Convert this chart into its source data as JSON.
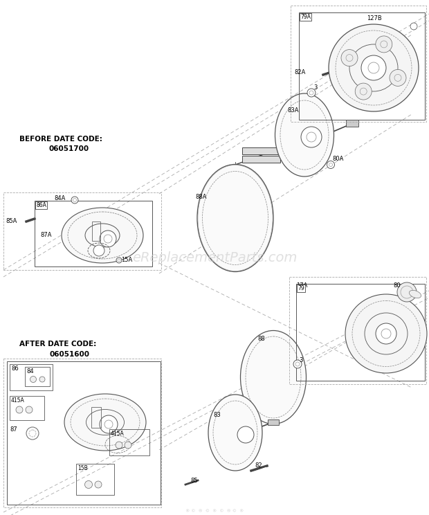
{
  "bg_color": "#ffffff",
  "watermark": "eReplacementParts.com",
  "before_label_line1": "BEFORE DATE CODE:",
  "before_label_line2": "06051700",
  "after_label_line1": "AFTER DATE CODE:",
  "after_label_line2": "06051600",
  "fig_w": 6.2,
  "fig_h": 7.44,
  "dpi": 100,
  "part_lc": "#444444",
  "part_lw": 0.7,
  "dash_lc": "#888888",
  "box_lc": "#555555",
  "guide_lc": "#999999"
}
